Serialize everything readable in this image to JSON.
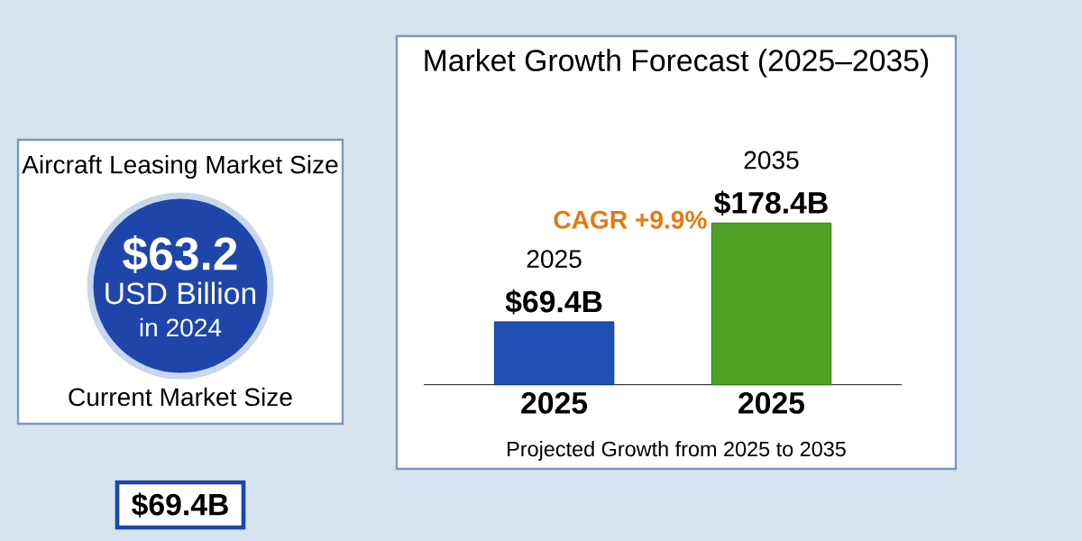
{
  "chart_data": [
    {
      "type": "other",
      "title": "Aircraft Leasing Market Size",
      "annotations": [
        "$63.2",
        "USD Billion",
        "in 2024",
        "Current Market Size",
        "$69.4B"
      ]
    },
    {
      "type": "bar",
      "title": "Market Growth Forecast (2025–2035)",
      "categories": [
        "2025",
        "2025"
      ],
      "values": [
        69.4,
        178.4
      ],
      "colors": [
        "#1f4fb5",
        "#4ea324"
      ],
      "value_labels": [
        "$69.4B",
        "$178.4B"
      ],
      "annotations": [
        "2025",
        "2035",
        "CAGR +9.9%",
        "Projected Growth from 2025 to 2035"
      ]
    }
  ]
}
